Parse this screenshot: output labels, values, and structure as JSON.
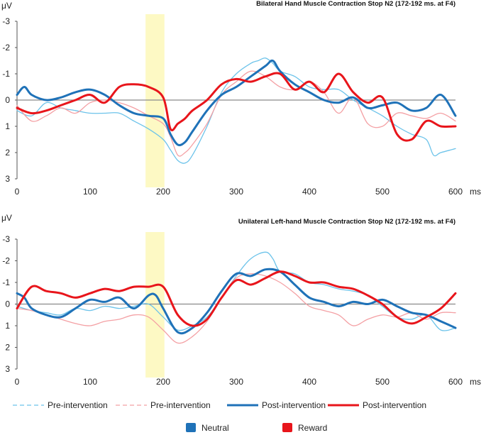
{
  "chart_data": [
    {
      "type": "line",
      "title": "Bilateral Hand Muscle Contraction Stop N2 (172-192 ms. at F4)",
      "ylabel": "μV",
      "xlabel": "ms",
      "ylim": [
        3,
        -3
      ],
      "xlim": [
        0,
        600
      ],
      "xticks": [
        "0",
        "100",
        "200",
        "300",
        "400",
        "500",
        "600"
      ],
      "yticks": [
        "-3",
        "-2",
        "-1",
        "0",
        "1",
        "2",
        "3"
      ],
      "highlight": [
        172,
        192
      ],
      "series": [
        {
          "name": "Pre-intervention",
          "group": "Neutral",
          "style": "dashed-thin",
          "x": [
            0,
            20,
            40,
            60,
            80,
            100,
            120,
            140,
            160,
            180,
            200,
            210,
            220,
            230,
            240,
            260,
            280,
            300,
            320,
            330,
            340,
            350,
            360,
            380,
            400,
            420,
            440,
            460,
            480,
            500,
            520,
            540,
            560,
            570,
            580,
            600
          ],
          "y": [
            0.4,
            0.6,
            0.1,
            0.3,
            0.4,
            0.5,
            0.5,
            0.5,
            0.8,
            1.1,
            1.5,
            1.9,
            2.3,
            2.4,
            2.1,
            1.0,
            -0.3,
            -1.0,
            -1.4,
            -1.5,
            -1.6,
            -1.4,
            -1.1,
            -0.9,
            -0.5,
            -0.4,
            -0.4,
            0.0,
            0.3,
            0.6,
            1.0,
            1.3,
            1.5,
            2.1,
            2.0,
            1.85
          ]
        },
        {
          "name": "Pre-intervention",
          "group": "Reward",
          "style": "dashed-thin",
          "x": [
            0,
            20,
            40,
            60,
            80,
            100,
            120,
            140,
            160,
            180,
            200,
            210,
            220,
            230,
            240,
            260,
            280,
            300,
            320,
            340,
            360,
            380,
            400,
            420,
            440,
            460,
            480,
            500,
            520,
            540,
            560,
            580,
            600
          ],
          "y": [
            0.2,
            0.8,
            0.6,
            0.3,
            0.5,
            0.1,
            0.0,
            0.1,
            0.3,
            0.6,
            0.9,
            1.4,
            2.1,
            2.0,
            1.7,
            0.9,
            -0.2,
            -0.7,
            -1.1,
            -0.9,
            -0.5,
            -0.4,
            -0.7,
            -0.3,
            0.5,
            -0.1,
            0.9,
            1.0,
            0.5,
            0.6,
            0.7,
            0.5,
            0.8
          ]
        },
        {
          "name": "Post-intervention",
          "group": "Neutral",
          "style": "solid-thick",
          "x": [
            0,
            10,
            20,
            40,
            60,
            80,
            100,
            120,
            140,
            160,
            180,
            200,
            210,
            220,
            230,
            240,
            260,
            280,
            300,
            320,
            340,
            350,
            360,
            380,
            400,
            420,
            440,
            460,
            480,
            500,
            520,
            540,
            560,
            580,
            600
          ],
          "y": [
            -0.2,
            -0.5,
            -0.2,
            0.0,
            -0.1,
            -0.3,
            -0.4,
            -0.2,
            0.2,
            0.5,
            0.6,
            0.7,
            1.3,
            1.7,
            1.6,
            1.2,
            0.4,
            -0.2,
            -0.5,
            -0.9,
            -1.3,
            -1.5,
            -1.1,
            -0.6,
            -0.3,
            0.0,
            0.1,
            -0.1,
            0.3,
            0.2,
            0.1,
            0.4,
            0.3,
            -0.2,
            0.6
          ]
        },
        {
          "name": "Post-intervention",
          "group": "Reward",
          "style": "solid-thick",
          "x": [
            0,
            20,
            40,
            60,
            80,
            100,
            120,
            140,
            160,
            180,
            200,
            210,
            220,
            230,
            240,
            260,
            280,
            300,
            320,
            340,
            360,
            380,
            400,
            420,
            440,
            460,
            480,
            500,
            520,
            540,
            560,
            580,
            600
          ],
          "y": [
            0.3,
            0.5,
            0.4,
            0.2,
            0.0,
            -0.2,
            0.1,
            -0.5,
            -0.6,
            -0.5,
            -0.1,
            1.1,
            0.9,
            0.7,
            0.4,
            0.0,
            -0.6,
            -0.8,
            -0.7,
            -0.9,
            -1.0,
            -0.4,
            -0.7,
            -0.3,
            -1.0,
            -0.3,
            0.1,
            -0.1,
            1.3,
            1.5,
            0.8,
            1.0,
            1.0
          ]
        }
      ]
    },
    {
      "type": "line",
      "title": "Unilateral Left-hand Muscle Contraction Stop N2 (172-192 ms. at F4)",
      "ylabel": "μV",
      "xlabel": "ms",
      "ylim": [
        3,
        -3
      ],
      "xlim": [
        0,
        600
      ],
      "xticks": [
        "0",
        "100",
        "200",
        "300",
        "400",
        "500",
        "600"
      ],
      "yticks": [
        "-3",
        "-2",
        "-1",
        "0",
        "1",
        "2",
        "3"
      ],
      "highlight": [
        172,
        192
      ],
      "series": [
        {
          "name": "Pre-intervention",
          "group": "Neutral",
          "style": "dashed-thin",
          "x": [
            0,
            20,
            40,
            60,
            80,
            100,
            120,
            140,
            160,
            180,
            200,
            220,
            240,
            260,
            280,
            300,
            320,
            340,
            350,
            360,
            380,
            400,
            420,
            440,
            460,
            480,
            500,
            520,
            540,
            560,
            580,
            600
          ],
          "y": [
            0.1,
            0.3,
            0.4,
            0.5,
            0.2,
            0.3,
            0.1,
            0.2,
            0.1,
            0.0,
            0.6,
            1.2,
            1.0,
            0.6,
            -0.3,
            -1.3,
            -2.1,
            -2.4,
            -2.1,
            -1.5,
            -1.4,
            -1.0,
            -0.9,
            -0.7,
            -0.6,
            -0.4,
            0.1,
            0.6,
            0.7,
            0.5,
            1.2,
            1.1
          ]
        },
        {
          "name": "Pre-intervention",
          "group": "Reward",
          "style": "dashed-thin",
          "x": [
            0,
            20,
            40,
            60,
            80,
            100,
            120,
            140,
            160,
            180,
            200,
            220,
            240,
            260,
            280,
            300,
            320,
            340,
            360,
            380,
            400,
            420,
            440,
            460,
            480,
            500,
            520,
            540,
            560,
            580,
            600
          ],
          "y": [
            0.2,
            0.3,
            0.5,
            0.7,
            0.9,
            1.0,
            0.8,
            0.7,
            0.5,
            0.6,
            1.2,
            1.8,
            1.5,
            0.8,
            -0.3,
            -1.2,
            -1.4,
            -1.3,
            -1.0,
            -0.5,
            0.1,
            0.3,
            0.5,
            1.0,
            0.7,
            0.5,
            0.6,
            0.4,
            0.7,
            0.4,
            0.4
          ]
        },
        {
          "name": "Post-intervention",
          "group": "Neutral",
          "style": "solid-thick",
          "x": [
            0,
            10,
            20,
            40,
            60,
            80,
            100,
            120,
            140,
            160,
            180,
            190,
            200,
            220,
            240,
            260,
            280,
            300,
            320,
            340,
            360,
            380,
            400,
            420,
            440,
            460,
            480,
            500,
            520,
            540,
            560,
            580,
            600
          ],
          "y": [
            -0.5,
            -0.3,
            0.2,
            0.5,
            0.6,
            0.2,
            -0.2,
            -0.1,
            -0.3,
            0.2,
            -0.4,
            -0.4,
            0.2,
            1.3,
            1.1,
            0.4,
            -0.6,
            -1.4,
            -1.3,
            -1.6,
            -1.5,
            -0.9,
            -0.3,
            -0.1,
            0.1,
            -0.1,
            0.0,
            -0.2,
            0.1,
            0.4,
            0.5,
            0.8,
            1.1
          ]
        },
        {
          "name": "Post-intervention",
          "group": "Reward",
          "style": "solid-thick",
          "x": [
            0,
            20,
            40,
            60,
            80,
            100,
            120,
            140,
            160,
            180,
            200,
            220,
            240,
            260,
            280,
            300,
            320,
            340,
            360,
            380,
            400,
            420,
            440,
            460,
            480,
            500,
            520,
            540,
            560,
            580,
            600
          ],
          "y": [
            0.2,
            -0.8,
            -0.6,
            -0.5,
            -0.3,
            -0.5,
            -0.7,
            -0.6,
            -0.8,
            -0.8,
            -0.8,
            0.5,
            1.0,
            0.7,
            -0.3,
            -1.1,
            -0.9,
            -1.2,
            -1.5,
            -1.3,
            -1.0,
            -1.0,
            -0.8,
            -0.7,
            -0.4,
            0.0,
            0.6,
            0.9,
            0.6,
            0.2,
            -0.5
          ]
        }
      ]
    }
  ],
  "legend": {
    "line_items": [
      {
        "label": "Pre-intervention",
        "group": "Neutral",
        "style": "dashed-thin"
      },
      {
        "label": "Pre-intervention",
        "group": "Reward",
        "style": "dashed-thin"
      },
      {
        "label": "Post-intervention",
        "group": "Neutral",
        "style": "solid-thick"
      },
      {
        "label": "Post-intervention",
        "group": "Reward",
        "style": "solid-thick"
      }
    ],
    "groups": [
      {
        "label": "Neutral",
        "color": "#1f72b8"
      },
      {
        "label": "Reward",
        "color": "#e8151b"
      }
    ]
  },
  "colors": {
    "neutral_pre": "#6cc3ea",
    "reward_pre": "#f4a0a4",
    "neutral_post": "#1f72b8",
    "reward_post": "#e8151b",
    "highlight": "#fdf9c4",
    "zero_line": "#8a8a8a",
    "axis": "#555555"
  }
}
